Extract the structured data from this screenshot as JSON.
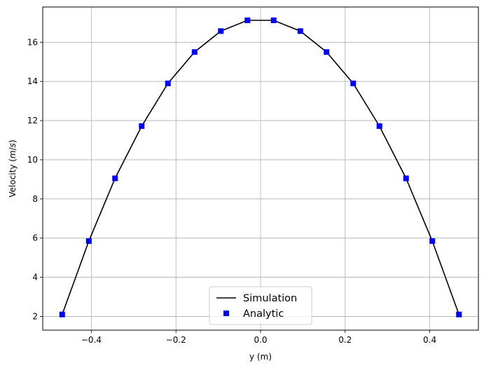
{
  "chart_data": {
    "type": "line",
    "xlabel": "y (m)",
    "ylabel": "Velocity (m/s)",
    "ylabel_parts": {
      "prefix": "Velocity (",
      "unit_m": "m",
      "slash": "/",
      "unit_s": "s",
      "suffix": ")"
    },
    "xlim": [
      -0.515,
      0.515
    ],
    "ylim": [
      1.3,
      17.8
    ],
    "x_ticks": [
      -0.4,
      -0.2,
      0.0,
      0.2,
      0.4
    ],
    "x_tick_labels": [
      "−0.4",
      "−0.2",
      "0.0",
      "0.2",
      "0.4"
    ],
    "y_ticks": [
      2,
      4,
      6,
      8,
      10,
      12,
      14,
      16
    ],
    "y_tick_labels": [
      "2",
      "4",
      "6",
      "8",
      "10",
      "12",
      "14",
      "16"
    ],
    "grid": true,
    "legend_placement": "lower center",
    "series": [
      {
        "name": "Simulation",
        "style": "line",
        "color": "#000000",
        "x": [
          -0.469,
          -0.406,
          -0.344,
          -0.281,
          -0.219,
          -0.156,
          -0.094,
          -0.031,
          0.031,
          0.094,
          0.156,
          0.219,
          0.281,
          0.344,
          0.406,
          0.469
        ],
        "y": [
          2.1,
          5.85,
          9.05,
          11.72,
          13.9,
          15.5,
          16.57,
          17.12,
          17.12,
          16.57,
          15.5,
          13.9,
          11.72,
          9.05,
          5.85,
          2.1
        ]
      },
      {
        "name": "Analytic",
        "style": "square-markers",
        "color": "#0000ff",
        "x": [
          -0.469,
          -0.406,
          -0.344,
          -0.281,
          -0.219,
          -0.156,
          -0.094,
          -0.031,
          0.031,
          0.094,
          0.156,
          0.219,
          0.281,
          0.344,
          0.406,
          0.469
        ],
        "y": [
          2.1,
          5.85,
          9.05,
          11.72,
          13.9,
          15.5,
          16.57,
          17.12,
          17.12,
          16.57,
          15.5,
          13.9,
          11.72,
          9.05,
          5.85,
          2.1
        ]
      }
    ]
  }
}
